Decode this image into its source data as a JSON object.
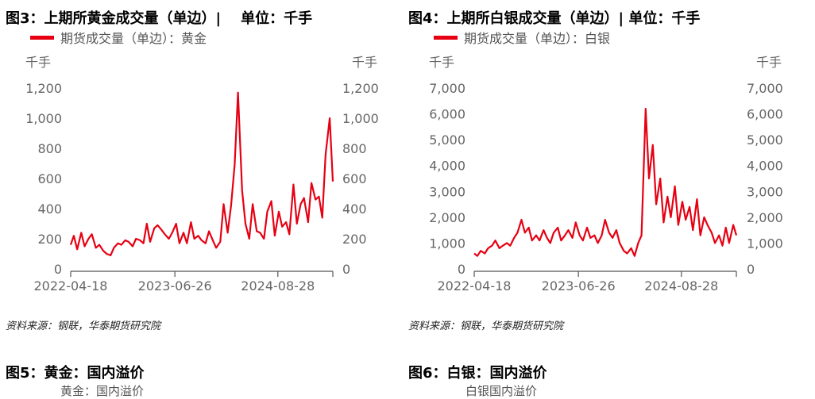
{
  "figures": [
    {
      "title": "图3：上期所黄金成交量（单边）|    单位：千手",
      "legend": "期货成交量（单边）：黄金",
      "source": "资料来源：钢联，华泰期货研究院"
    },
    {
      "title": "图4：上期所白银成交量（单边）| 单位：千手",
      "legend": "期货成交量（单边）：白银",
      "source": "资料来源：钢联，华泰期货研究院"
    }
  ],
  "next_figures": [
    {
      "title": "图5：黄金：国内溢价",
      "legend": "黄金：国内溢价"
    },
    {
      "title": "图6：白银：国内溢价",
      "legend": "白银国内溢价"
    }
  ],
  "chart_data": [
    {
      "type": "line",
      "title": "图3：上期所黄金成交量（单边）",
      "ylabel_left": "千手",
      "ylabel_right": "千手",
      "ylim": [
        0,
        1200
      ],
      "yticks": [
        "0",
        "200",
        "400",
        "600",
        "800",
        "1,000",
        "1,200"
      ],
      "ytick_values": [
        0,
        200,
        400,
        600,
        800,
        1000,
        1200
      ],
      "xlim": [
        "2022-04-18",
        "2025-04-14"
      ],
      "xticks": [
        "2022-04-18",
        "2023-06-26",
        "2024-08-28"
      ],
      "grid": false,
      "legend_position": "top-left",
      "color": "#e60012",
      "series": [
        {
          "name": "期货成交量（单边）：黄金",
          "values": [
            160,
            220,
            130,
            240,
            150,
            200,
            230,
            140,
            160,
            120,
            100,
            90,
            140,
            170,
            160,
            190,
            180,
            150,
            200,
            190,
            170,
            300,
            180,
            270,
            290,
            260,
            230,
            200,
            240,
            300,
            170,
            240,
            170,
            310,
            200,
            220,
            190,
            170,
            250,
            190,
            140,
            180,
            430,
            240,
            420,
            690,
            1170,
            520,
            300,
            200,
            430,
            250,
            240,
            200,
            380,
            450,
            220,
            380,
            280,
            310,
            230,
            560,
            300,
            430,
            470,
            310,
            570,
            460,
            480,
            340,
            760,
            1000,
            580
          ]
        }
      ]
    },
    {
      "type": "line",
      "title": "图4：上期所白银成交量（单边）",
      "ylabel_left": "千手",
      "ylabel_right": "千手",
      "ylim": [
        0,
        7000
      ],
      "yticks": [
        "0",
        "1,000",
        "2,000",
        "3,000",
        "4,000",
        "5,000",
        "6,000",
        "7,000"
      ],
      "ytick_values": [
        0,
        1000,
        2000,
        3000,
        4000,
        5000,
        6000,
        7000
      ],
      "xlim": [
        "2022-04-18",
        "2025-04-14"
      ],
      "xticks": [
        "2022-04-18",
        "2023-06-26",
        "2024-08-28"
      ],
      "grid": false,
      "legend_position": "top-left",
      "color": "#e60012",
      "series": [
        {
          "name": "期货成交量（单边）：白银",
          "values": [
            600,
            500,
            700,
            600,
            800,
            900,
            1100,
            800,
            900,
            1000,
            900,
            1200,
            1400,
            1900,
            1400,
            1600,
            1100,
            1300,
            1100,
            1500,
            1200,
            1000,
            1400,
            1600,
            1100,
            1300,
            1500,
            1200,
            1800,
            1300,
            1100,
            1600,
            1200,
            1300,
            1000,
            1300,
            1900,
            1400,
            1200,
            1500,
            1000,
            700,
            600,
            800,
            500,
            1000,
            1300,
            6200,
            3500,
            4800,
            2500,
            3500,
            1800,
            2800,
            2000,
            3200,
            1700,
            2600,
            1900,
            2400,
            1500,
            2700,
            1300,
            2000,
            1700,
            1400,
            1000,
            1300,
            900,
            1600,
            1000,
            1700,
            1300
          ]
        }
      ]
    }
  ],
  "dates": [
    "2022-04-18",
    "2022-05-01",
    "2022-05-15",
    "2022-06-01",
    "2022-06-15",
    "2022-07-01",
    "2022-07-15",
    "2022-08-01",
    "2022-08-15",
    "2022-09-01",
    "2022-09-15",
    "2022-10-01",
    "2022-10-15",
    "2022-11-01",
    "2022-11-15",
    "2022-12-01",
    "2022-12-15",
    "2023-01-01",
    "2023-01-15",
    "2023-02-01",
    "2023-02-15",
    "2023-03-01",
    "2023-03-15",
    "2023-04-01",
    "2023-04-15",
    "2023-05-01",
    "2023-05-15",
    "2023-06-01",
    "2023-06-15",
    "2023-07-01",
    "2023-07-15",
    "2023-08-01",
    "2023-08-15",
    "2023-09-01",
    "2023-09-15",
    "2023-10-01",
    "2023-10-15",
    "2023-11-01",
    "2023-11-15",
    "2023-12-01",
    "2023-12-15",
    "2024-01-01",
    "2024-01-15",
    "2024-02-01",
    "2024-02-15",
    "2024-03-01",
    "2024-03-15",
    "2024-04-01",
    "2024-04-15",
    "2024-05-01",
    "2024-05-15",
    "2024-06-01",
    "2024-06-15",
    "2024-07-01",
    "2024-07-15",
    "2024-08-01",
    "2024-08-15",
    "2024-09-01",
    "2024-09-15",
    "2024-10-01",
    "2024-10-15",
    "2024-11-01",
    "2024-11-15",
    "2024-12-01",
    "2024-12-15",
    "2025-01-01",
    "2025-01-15",
    "2025-02-01",
    "2025-02-15",
    "2025-03-01",
    "2025-03-15",
    "2025-04-01",
    "2025-04-14"
  ]
}
